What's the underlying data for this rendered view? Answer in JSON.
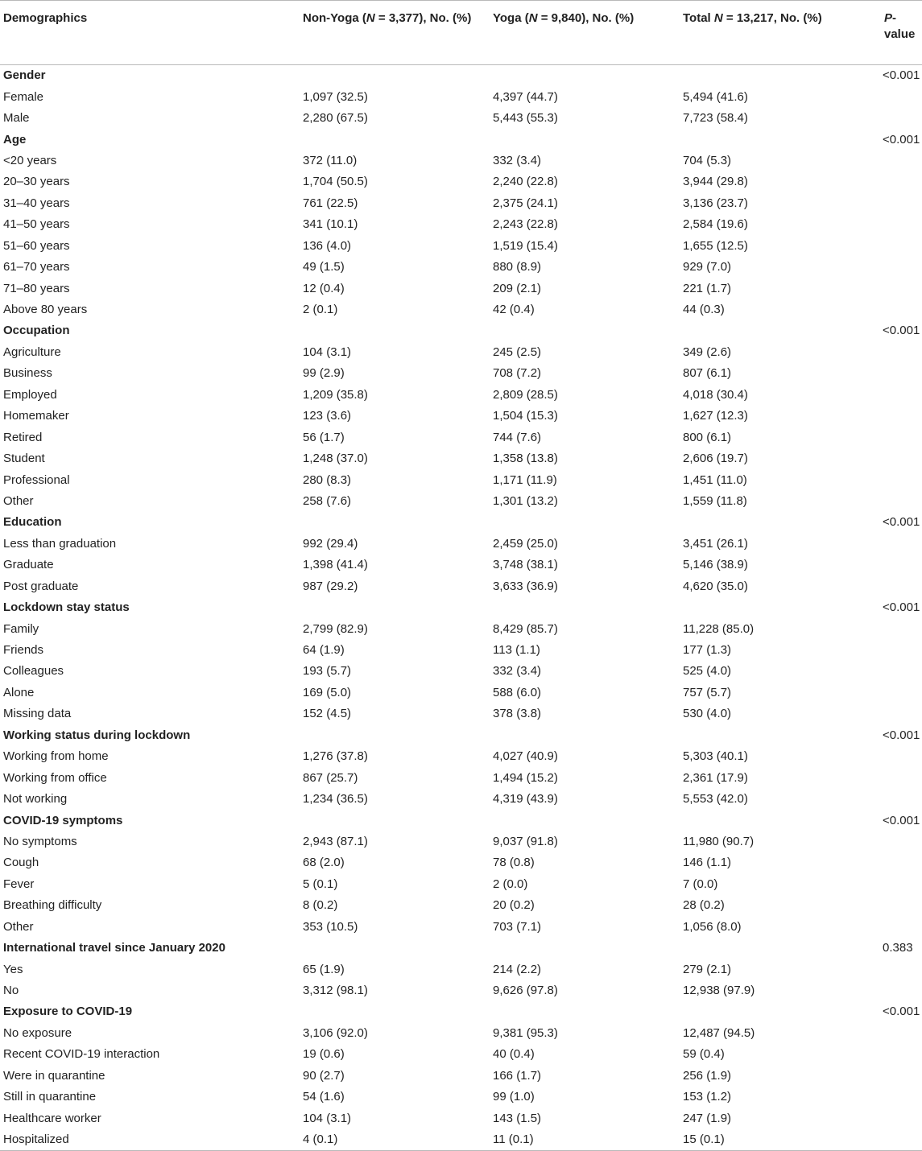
{
  "headers": {
    "demographics": "Demographics",
    "nonyoga_a": "Non-Yoga (",
    "nonyoga_n": "N",
    "nonyoga_b": " = 3,377), No. (%)",
    "yoga_a": "Yoga (",
    "yoga_n": "N",
    "yoga_b": " = 9,840), No. (%)",
    "total_a": "Total ",
    "total_n": "N",
    "total_b": " = 13,217, No. (%)",
    "pvalue_p": "P",
    "pvalue_b": "-value"
  },
  "rows": [
    {
      "label": "Gender",
      "nonyoga": "",
      "yoga": "",
      "total": "",
      "p": "<0.001",
      "section": true
    },
    {
      "label": "Female",
      "nonyoga": "1,097 (32.5)",
      "yoga": "4,397 (44.7)",
      "total": "5,494 (41.6)",
      "p": ""
    },
    {
      "label": "Male",
      "nonyoga": "2,280 (67.5)",
      "yoga": "5,443 (55.3)",
      "total": "7,723 (58.4)",
      "p": ""
    },
    {
      "label": "Age",
      "nonyoga": "",
      "yoga": "",
      "total": "",
      "p": "<0.001",
      "section": true
    },
    {
      "label": "<20 years",
      "nonyoga": "372 (11.0)",
      "yoga": "332 (3.4)",
      "total": "704 (5.3)",
      "p": ""
    },
    {
      "label": "20–30 years",
      "nonyoga": "1,704 (50.5)",
      "yoga": "2,240 (22.8)",
      "total": "3,944 (29.8)",
      "p": ""
    },
    {
      "label": "31–40 years",
      "nonyoga": "761 (22.5)",
      "yoga": "2,375 (24.1)",
      "total": "3,136 (23.7)",
      "p": ""
    },
    {
      "label": "41–50 years",
      "nonyoga": "341 (10.1)",
      "yoga": "2,243 (22.8)",
      "total": "2,584 (19.6)",
      "p": ""
    },
    {
      "label": "51–60 years",
      "nonyoga": "136 (4.0)",
      "yoga": "1,519 (15.4)",
      "total": "1,655 (12.5)",
      "p": ""
    },
    {
      "label": "61–70 years",
      "nonyoga": "49 (1.5)",
      "yoga": "880 (8.9)",
      "total": "929 (7.0)",
      "p": ""
    },
    {
      "label": "71–80 years",
      "nonyoga": "12 (0.4)",
      "yoga": "209 (2.1)",
      "total": "221 (1.7)",
      "p": ""
    },
    {
      "label": "Above 80 years",
      "nonyoga": "2 (0.1)",
      "yoga": "42 (0.4)",
      "total": "44 (0.3)",
      "p": ""
    },
    {
      "label": "Occupation",
      "nonyoga": "",
      "yoga": "",
      "total": "",
      "p": "<0.001",
      "section": true
    },
    {
      "label": "Agriculture",
      "nonyoga": "104 (3.1)",
      "yoga": "245 (2.5)",
      "total": "349 (2.6)",
      "p": ""
    },
    {
      "label": "Business",
      "nonyoga": "99 (2.9)",
      "yoga": "708 (7.2)",
      "total": "807 (6.1)",
      "p": ""
    },
    {
      "label": "Employed",
      "nonyoga": "1,209 (35.8)",
      "yoga": "2,809 (28.5)",
      "total": "4,018 (30.4)",
      "p": ""
    },
    {
      "label": "Homemaker",
      "nonyoga": "123 (3.6)",
      "yoga": "1,504 (15.3)",
      "total": "1,627 (12.3)",
      "p": ""
    },
    {
      "label": "Retired",
      "nonyoga": "56 (1.7)",
      "yoga": "744 (7.6)",
      "total": "800 (6.1)",
      "p": ""
    },
    {
      "label": "Student",
      "nonyoga": "1,248 (37.0)",
      "yoga": "1,358 (13.8)",
      "total": "2,606 (19.7)",
      "p": ""
    },
    {
      "label": "Professional",
      "nonyoga": "280 (8.3)",
      "yoga": "1,171 (11.9)",
      "total": "1,451 (11.0)",
      "p": ""
    },
    {
      "label": "Other",
      "nonyoga": "258 (7.6)",
      "yoga": "1,301 (13.2)",
      "total": "1,559 (11.8)",
      "p": ""
    },
    {
      "label": "Education",
      "nonyoga": "",
      "yoga": "",
      "total": "",
      "p": "<0.001",
      "section": true
    },
    {
      "label": "Less than graduation",
      "nonyoga": "992 (29.4)",
      "yoga": "2,459 (25.0)",
      "total": "3,451 (26.1)",
      "p": ""
    },
    {
      "label": "Graduate",
      "nonyoga": "1,398 (41.4)",
      "yoga": "3,748 (38.1)",
      "total": "5,146 (38.9)",
      "p": ""
    },
    {
      "label": "Post graduate",
      "nonyoga": "987 (29.2)",
      "yoga": "3,633 (36.9)",
      "total": "4,620 (35.0)",
      "p": ""
    },
    {
      "label": "Lockdown stay status",
      "nonyoga": "",
      "yoga": "",
      "total": "",
      "p": "<0.001",
      "section": true
    },
    {
      "label": "Family",
      "nonyoga": "2,799 (82.9)",
      "yoga": "8,429 (85.7)",
      "total": "11,228 (85.0)",
      "p": ""
    },
    {
      "label": "Friends",
      "nonyoga": "64 (1.9)",
      "yoga": "113 (1.1)",
      "total": "177 (1.3)",
      "p": ""
    },
    {
      "label": "Colleagues",
      "nonyoga": "193 (5.7)",
      "yoga": "332 (3.4)",
      "total": "525 (4.0)",
      "p": ""
    },
    {
      "label": "Alone",
      "nonyoga": "169 (5.0)",
      "yoga": "588 (6.0)",
      "total": "757 (5.7)",
      "p": ""
    },
    {
      "label": "Missing data",
      "nonyoga": "152 (4.5)",
      "yoga": "378 (3.8)",
      "total": "530 (4.0)",
      "p": ""
    },
    {
      "label": "Working status during lockdown",
      "nonyoga": "",
      "yoga": "",
      "total": "",
      "p": "<0.001",
      "section": true
    },
    {
      "label": "Working from home",
      "nonyoga": "1,276 (37.8)",
      "yoga": "4,027 (40.9)",
      "total": "5,303 (40.1)",
      "p": ""
    },
    {
      "label": "Working from office",
      "nonyoga": "867 (25.7)",
      "yoga": "1,494 (15.2)",
      "total": "2,361 (17.9)",
      "p": ""
    },
    {
      "label": "Not working",
      "nonyoga": "1,234 (36.5)",
      "yoga": "4,319 (43.9)",
      "total": "5,553 (42.0)",
      "p": ""
    },
    {
      "label": "COVID-19 symptoms",
      "nonyoga": "",
      "yoga": "",
      "total": "",
      "p": "<0.001",
      "section": true
    },
    {
      "label": "No symptoms",
      "nonyoga": "2,943 (87.1)",
      "yoga": "9,037 (91.8)",
      "total": "11,980 (90.7)",
      "p": ""
    },
    {
      "label": "Cough",
      "nonyoga": "68 (2.0)",
      "yoga": "78 (0.8)",
      "total": "146 (1.1)",
      "p": ""
    },
    {
      "label": "Fever",
      "nonyoga": "5 (0.1)",
      "yoga": "2 (0.0)",
      "total": "7 (0.0)",
      "p": ""
    },
    {
      "label": "Breathing difficulty",
      "nonyoga": "8 (0.2)",
      "yoga": "20 (0.2)",
      "total": "28 (0.2)",
      "p": ""
    },
    {
      "label": "Other",
      "nonyoga": "353 (10.5)",
      "yoga": "703 (7.1)",
      "total": "1,056 (8.0)",
      "p": ""
    },
    {
      "label": "International travel since January 2020",
      "nonyoga": "",
      "yoga": "",
      "total": "",
      "p": "0.383",
      "section": true
    },
    {
      "label": "Yes",
      "nonyoga": "65 (1.9)",
      "yoga": "214 (2.2)",
      "total": "279 (2.1)",
      "p": ""
    },
    {
      "label": "No",
      "nonyoga": "3,312 (98.1)",
      "yoga": "9,626 (97.8)",
      "total": "12,938 (97.9)",
      "p": ""
    },
    {
      "label": "Exposure to COVID-19",
      "nonyoga": "",
      "yoga": "",
      "total": "",
      "p": "<0.001",
      "section": true
    },
    {
      "label": "No exposure",
      "nonyoga": "3,106 (92.0)",
      "yoga": "9,381 (95.3)",
      "total": "12,487 (94.5)",
      "p": ""
    },
    {
      "label": "Recent COVID-19 interaction",
      "nonyoga": "19 (0.6)",
      "yoga": "40 (0.4)",
      "total": "59 (0.4)",
      "p": ""
    },
    {
      "label": "Were in quarantine",
      "nonyoga": "90 (2.7)",
      "yoga": "166 (1.7)",
      "total": "256 (1.9)",
      "p": ""
    },
    {
      "label": "Still in quarantine",
      "nonyoga": "54 (1.6)",
      "yoga": "99 (1.0)",
      "total": "153 (1.2)",
      "p": ""
    },
    {
      "label": "Healthcare worker",
      "nonyoga": "104 (3.1)",
      "yoga": "143 (1.5)",
      "total": "247 (1.9)",
      "p": ""
    },
    {
      "label": "Hospitalized",
      "nonyoga": "4 (0.1)",
      "yoga": "11 (0.1)",
      "total": "15 (0.1)",
      "p": ""
    }
  ]
}
